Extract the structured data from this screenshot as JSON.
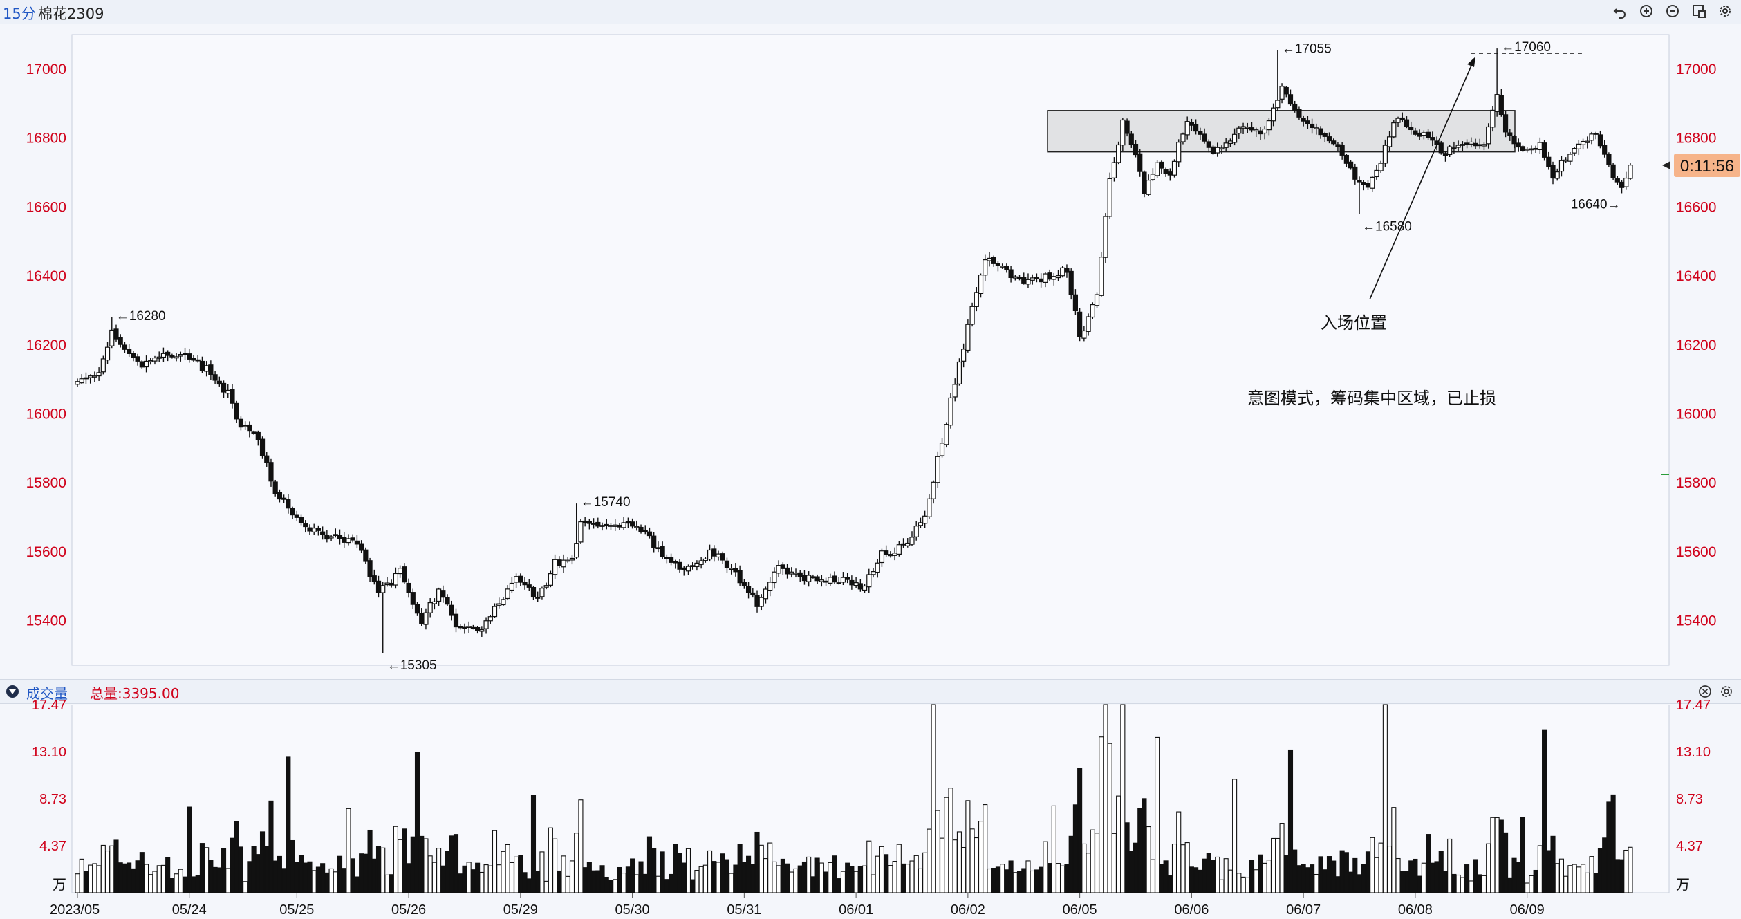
{
  "header": {
    "period": "15分",
    "symbol": "棉花2309",
    "toolbar_icons": [
      "undo-icon",
      "zoom-in-icon",
      "zoom-out-icon",
      "restore-icon",
      "settings-icon"
    ]
  },
  "volume_panel": {
    "title": "成交量",
    "total_label": "总量:3395.00",
    "unit_label": "万",
    "panel_icons": [
      "close-icon",
      "settings-icon"
    ]
  },
  "colors": {
    "axis_label": "#d0021b",
    "countdown_bg": "#f6b48a",
    "zone_fill": "#e1e2e4"
  },
  "chart_data": [
    {
      "type": "candlestick",
      "instrument": "棉花2309",
      "interval": "15分",
      "yticks": [
        15400,
        15600,
        15800,
        16000,
        16200,
        16400,
        16600,
        16800,
        17000
      ],
      "ylim": [
        15180,
        17100
      ],
      "xticks": [
        "2023/05",
        "05/24",
        "05/25",
        "05/26",
        "05/29",
        "05/30",
        "05/31",
        "06/01",
        "06/02",
        "06/05",
        "06/06",
        "06/07",
        "06/08",
        "06/09"
      ],
      "countdown": "0:11:56",
      "annotations": [
        {
          "text": "←16280",
          "value": 16280
        },
        {
          "text": "←15305",
          "value": 15305
        },
        {
          "text": "←15740",
          "value": 15740
        },
        {
          "text": "←17055",
          "value": 17055
        },
        {
          "text": "←17060",
          "value": 17060
        },
        {
          "text": "←16580",
          "value": 16580
        },
        {
          "text": "16640→",
          "value": 16640
        },
        {
          "text": "入场位置"
        },
        {
          "text": "意图模式，筹码集中区域，已止损"
        }
      ],
      "zone": {
        "low": 16760,
        "high": 16880
      },
      "anchors": [
        {
          "i": 0,
          "p": 16090
        },
        {
          "i": 5,
          "p": 16120
        },
        {
          "i": 8,
          "p": 16230
        },
        {
          "i": 10,
          "p": 16190
        },
        {
          "i": 14,
          "p": 16140
        },
        {
          "i": 20,
          "p": 16170
        },
        {
          "i": 25,
          "p": 16170
        },
        {
          "i": 30,
          "p": 16130
        },
        {
          "i": 35,
          "p": 16060
        },
        {
          "i": 37,
          "p": 15980
        },
        {
          "i": 42,
          "p": 15920
        },
        {
          "i": 46,
          "p": 15780
        },
        {
          "i": 50,
          "p": 15700
        },
        {
          "i": 55,
          "p": 15660
        },
        {
          "i": 60,
          "p": 15640
        },
        {
          "i": 65,
          "p": 15620
        },
        {
          "i": 70,
          "p": 15480
        },
        {
          "i": 75,
          "p": 15540
        },
        {
          "i": 80,
          "p": 15400
        },
        {
          "i": 84,
          "p": 15480
        },
        {
          "i": 88,
          "p": 15390
        },
        {
          "i": 93,
          "p": 15370
        },
        {
          "i": 97,
          "p": 15430
        },
        {
          "i": 102,
          "p": 15520
        },
        {
          "i": 107,
          "p": 15460
        },
        {
          "i": 111,
          "p": 15570
        },
        {
          "i": 115,
          "p": 15570
        },
        {
          "i": 117,
          "p": 15680
        },
        {
          "i": 122,
          "p": 15670
        },
        {
          "i": 128,
          "p": 15680
        },
        {
          "i": 133,
          "p": 15640
        },
        {
          "i": 138,
          "p": 15560
        },
        {
          "i": 143,
          "p": 15560
        },
        {
          "i": 148,
          "p": 15600
        },
        {
          "i": 153,
          "p": 15530
        },
        {
          "i": 158,
          "p": 15450
        },
        {
          "i": 163,
          "p": 15560
        },
        {
          "i": 168,
          "p": 15530
        },
        {
          "i": 173,
          "p": 15520
        },
        {
          "i": 178,
          "p": 15520
        },
        {
          "i": 183,
          "p": 15500
        },
        {
          "i": 187,
          "p": 15600
        },
        {
          "i": 192,
          "p": 15610
        },
        {
          "i": 197,
          "p": 15700
        },
        {
          "i": 201,
          "p": 15920
        },
        {
          "i": 205,
          "p": 16150
        },
        {
          "i": 208,
          "p": 16300
        },
        {
          "i": 211,
          "p": 16450
        },
        {
          "i": 215,
          "p": 16420
        },
        {
          "i": 220,
          "p": 16380
        },
        {
          "i": 226,
          "p": 16400
        },
        {
          "i": 230,
          "p": 16420
        },
        {
          "i": 233,
          "p": 16220
        },
        {
          "i": 237,
          "p": 16350
        },
        {
          "i": 240,
          "p": 16680
        },
        {
          "i": 243,
          "p": 16850
        },
        {
          "i": 246,
          "p": 16760
        },
        {
          "i": 248,
          "p": 16640
        },
        {
          "i": 251,
          "p": 16730
        },
        {
          "i": 254,
          "p": 16700
        },
        {
          "i": 258,
          "p": 16860
        },
        {
          "i": 263,
          "p": 16760
        },
        {
          "i": 268,
          "p": 16800
        },
        {
          "i": 272,
          "p": 16840
        },
        {
          "i": 276,
          "p": 16820
        },
        {
          "i": 280,
          "p": 16950
        },
        {
          "i": 284,
          "p": 16850
        },
        {
          "i": 289,
          "p": 16820
        },
        {
          "i": 294,
          "p": 16760
        },
        {
          "i": 297,
          "p": 16680
        },
        {
          "i": 300,
          "p": 16650
        },
        {
          "i": 303,
          "p": 16730
        },
        {
          "i": 306,
          "p": 16850
        },
        {
          "i": 310,
          "p": 16830
        },
        {
          "i": 315,
          "p": 16790
        },
        {
          "i": 318,
          "p": 16760
        },
        {
          "i": 322,
          "p": 16790
        },
        {
          "i": 327,
          "p": 16790
        },
        {
          "i": 330,
          "p": 16930
        },
        {
          "i": 332,
          "p": 16820
        },
        {
          "i": 335,
          "p": 16770
        },
        {
          "i": 340,
          "p": 16780
        },
        {
          "i": 343,
          "p": 16690
        },
        {
          "i": 348,
          "p": 16770
        },
        {
          "i": 353,
          "p": 16820
        },
        {
          "i": 357,
          "p": 16690
        },
        {
          "i": 359,
          "p": 16660
        },
        {
          "i": 361,
          "p": 16710
        }
      ],
      "marks": [
        {
          "i": 8,
          "h": 16280
        },
        {
          "i": 71,
          "l": 15305
        },
        {
          "i": 116,
          "h": 15740
        },
        {
          "i": 279,
          "h": 17055
        },
        {
          "i": 330,
          "h": 17060
        },
        {
          "i": 298,
          "l": 16580
        },
        {
          "i": 359,
          "l": 16640
        }
      ]
    },
    {
      "type": "bar",
      "series_name": "成交量",
      "unit": "万",
      "yticks": [
        4.37,
        8.73,
        13.1,
        17.47
      ],
      "ylim": [
        0,
        17.47
      ],
      "total": 3395.0,
      "bars": 362
    }
  ]
}
